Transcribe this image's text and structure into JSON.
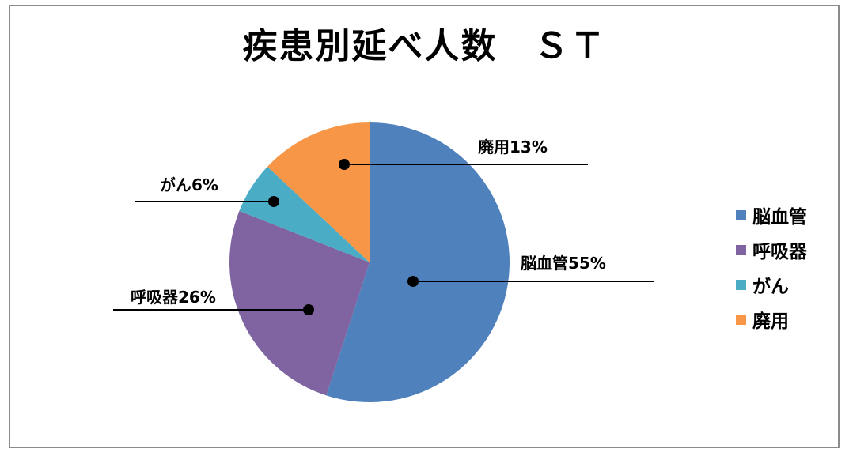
{
  "chart_data": {
    "type": "pie",
    "title": "疾患別延べ人数　ＳＴ",
    "categories": [
      "脳血管",
      "呼吸器",
      "がん",
      "廃用"
    ],
    "values": [
      55,
      26,
      6,
      13
    ],
    "data_labels": [
      "脳血管55%",
      "呼吸器26%",
      "がん6%",
      "廃用13%"
    ],
    "colors": [
      "#4f81bd",
      "#8064a2",
      "#4bacc6",
      "#f79646"
    ],
    "legend_position": "right"
  }
}
